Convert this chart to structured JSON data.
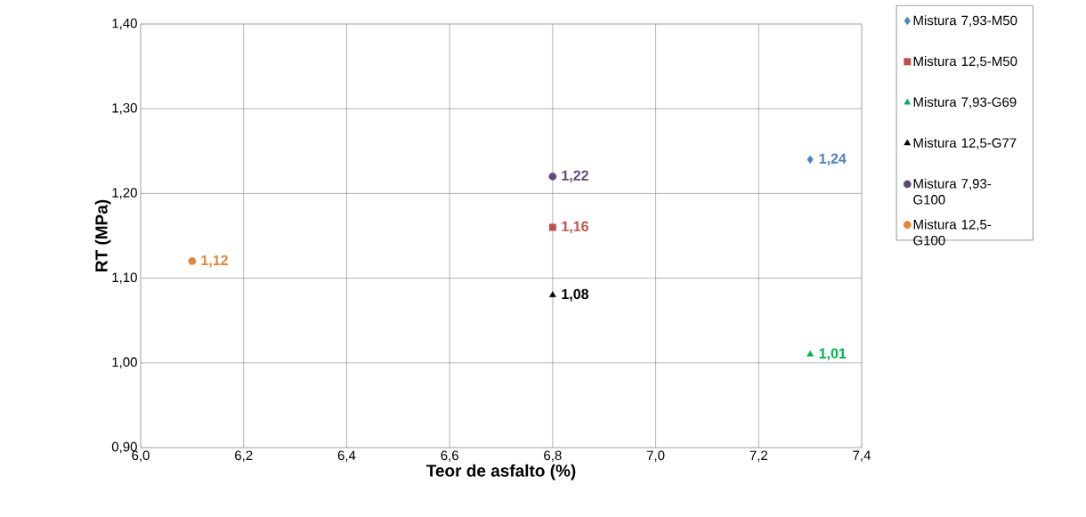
{
  "chart_data": {
    "type": "scatter",
    "xlabel": "Teor de asfalto (%)",
    "ylabel": "RT (MPa)",
    "xlim": [
      6.0,
      7.4
    ],
    "ylim": [
      0.9,
      1.4
    ],
    "xticks": [
      {
        "value": 6.0,
        "label": "6,0"
      },
      {
        "value": 6.2,
        "label": "6,2"
      },
      {
        "value": 6.4,
        "label": "6,4"
      },
      {
        "value": 6.6,
        "label": "6,6"
      },
      {
        "value": 6.8,
        "label": "6,8"
      },
      {
        "value": 7.0,
        "label": "7,0"
      },
      {
        "value": 7.2,
        "label": "7,2"
      },
      {
        "value": 7.4,
        "label": "7,4"
      }
    ],
    "yticks": [
      {
        "value": 0.9,
        "label": "0,90"
      },
      {
        "value": 1.0,
        "label": "1,00"
      },
      {
        "value": 1.1,
        "label": "1,10"
      },
      {
        "value": 1.2,
        "label": "1,20"
      },
      {
        "value": 1.3,
        "label": "1,30"
      },
      {
        "value": 1.4,
        "label": "1,40"
      }
    ],
    "grid": true,
    "legend": "right",
    "series": [
      {
        "name": "Mistura 7,93-M50",
        "color": "#4f81bd",
        "marker": "diamond",
        "x": [
          7.3
        ],
        "values": [
          1.24
        ],
        "value_labels": [
          "1,24"
        ]
      },
      {
        "name": "Mistura 12,5-M50",
        "color": "#c0504d",
        "marker": "square",
        "x": [
          6.8
        ],
        "values": [
          1.16
        ],
        "value_labels": [
          "1,16"
        ]
      },
      {
        "name": "Mistura 7,93-G69",
        "color": "#00b050",
        "marker": "triangle",
        "x": [
          7.3
        ],
        "values": [
          1.01
        ],
        "value_labels": [
          "1,01"
        ]
      },
      {
        "name": "Mistura 12,5-G77",
        "color": "#000000",
        "marker": "triangle",
        "x": [
          6.8
        ],
        "values": [
          1.08
        ],
        "value_labels": [
          "1,08"
        ]
      },
      {
        "name": "Mistura 7,93-G100",
        "color": "#604a7b",
        "marker": "circle",
        "x": [
          6.8
        ],
        "values": [
          1.22
        ],
        "value_labels": [
          "1,22"
        ]
      },
      {
        "name": "Mistura 12,5-G100",
        "color": "#e0873c",
        "marker": "circle",
        "x": [
          6.1
        ],
        "values": [
          1.12
        ],
        "value_labels": [
          "1,12"
        ]
      }
    ]
  }
}
